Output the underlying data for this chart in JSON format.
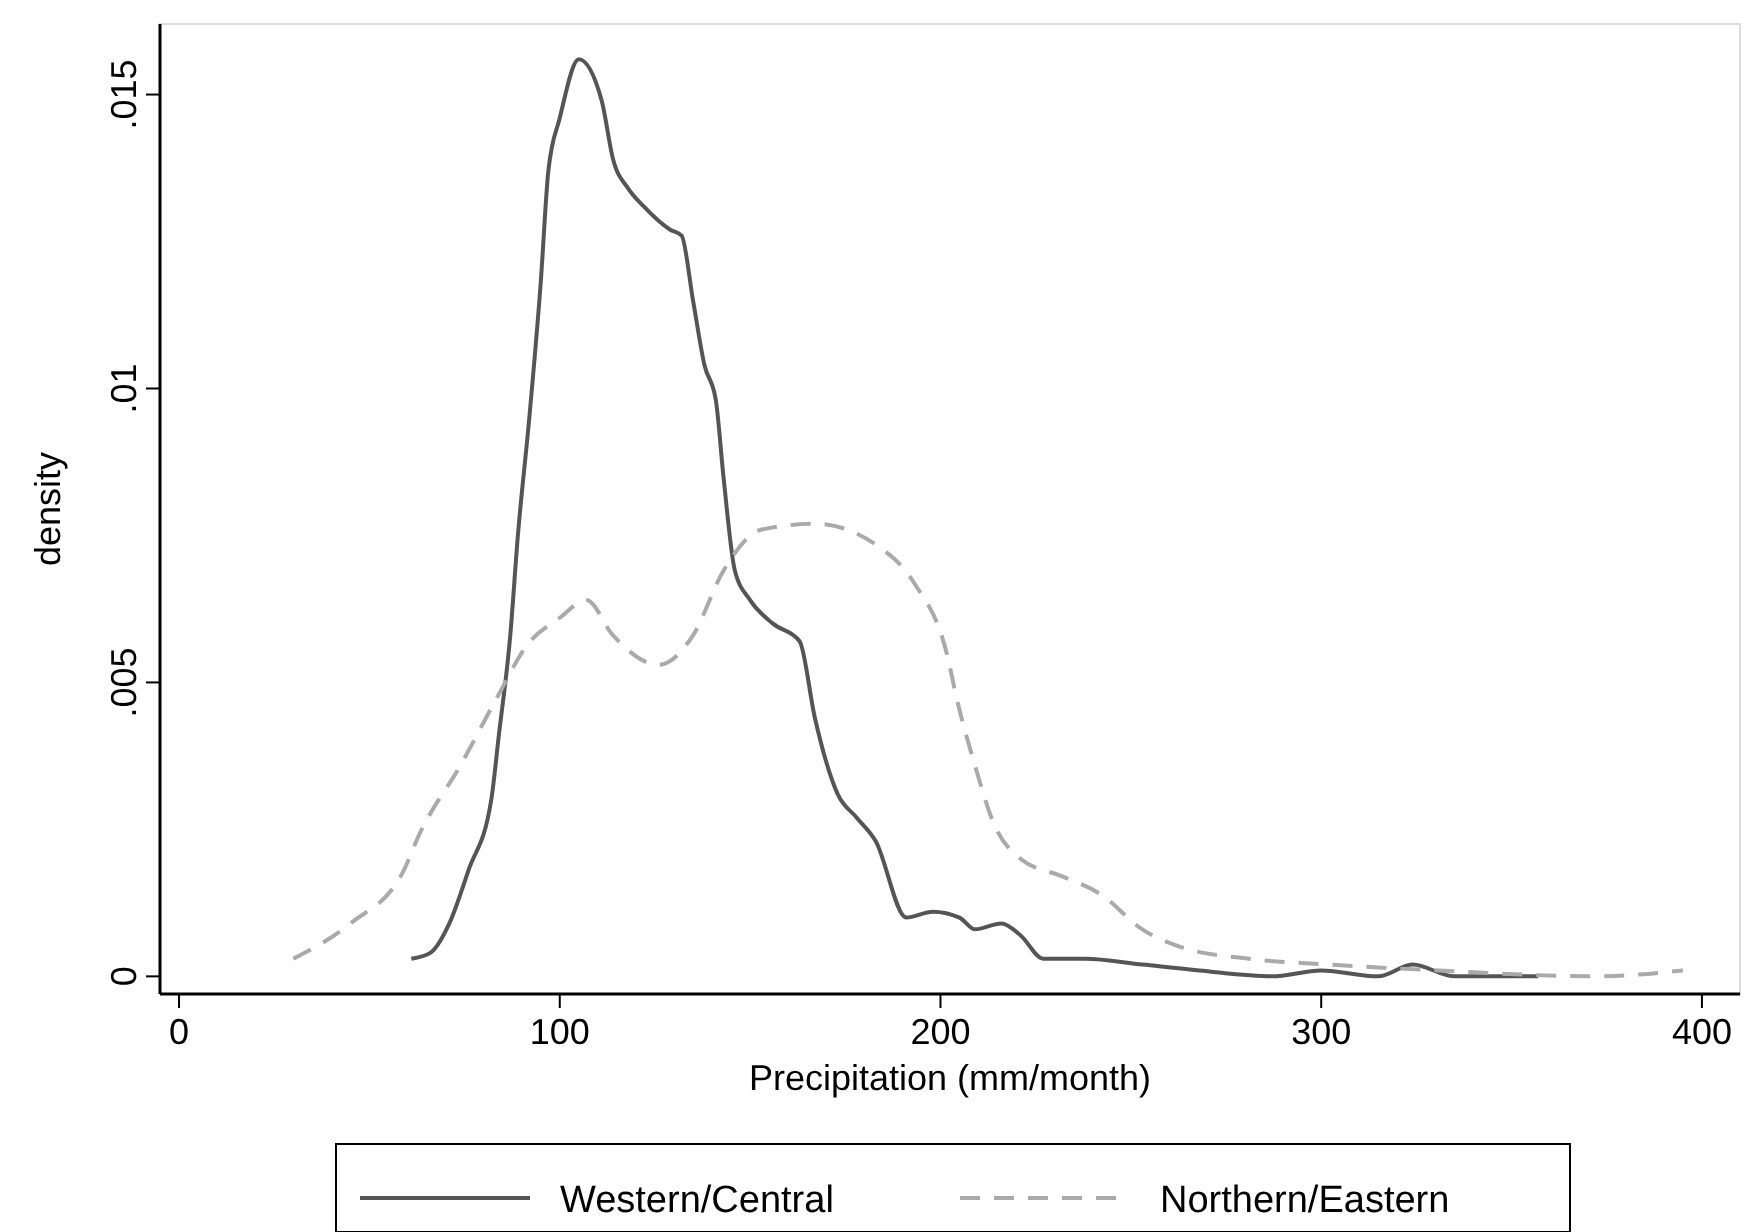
{
  "chart_data": {
    "type": "line",
    "xlabel": "Precipitation (mm/month)",
    "ylabel": "density",
    "xlim": [
      -5,
      410
    ],
    "ylim": [
      -0.0003,
      0.0162
    ],
    "xticks": [
      0,
      100,
      200,
      300,
      400
    ],
    "yticks": [
      {
        "value": 0,
        "label": "0"
      },
      {
        "value": 0.005,
        "label": ".005"
      },
      {
        "value": 0.01,
        "label": ".01"
      },
      {
        "value": 0.015,
        "label": ".015"
      }
    ],
    "grid": false,
    "legend": "bottom",
    "marker": "none",
    "series": [
      {
        "name": "Western/Central",
        "color": "#555555",
        "line_style": "solid",
        "x": [
          61,
          66,
          71,
          76,
          82,
          84,
          87,
          89,
          92,
          95,
          97,
          100,
          105,
          111,
          114,
          118,
          122,
          129,
          132,
          135,
          138,
          141,
          143,
          146,
          150,
          156,
          163,
          167,
          173,
          178,
          183,
          191,
          198,
          205,
          209,
          216,
          221,
          227,
          238,
          253,
          268,
          287,
          300,
          315,
          324,
          335,
          357
        ],
        "values": [
          0.0003,
          0.0004,
          0.0009,
          0.0018,
          0.003,
          0.0041,
          0.0058,
          0.0075,
          0.0095,
          0.0118,
          0.0137,
          0.0146,
          0.0156,
          0.0149,
          0.0139,
          0.0134,
          0.0131,
          0.0127,
          0.0126,
          0.0115,
          0.0104,
          0.0098,
          0.0085,
          0.0069,
          0.0064,
          0.006,
          0.0057,
          0.0044,
          0.0031,
          0.0027,
          0.0023,
          0.001,
          0.0011,
          0.001,
          0.0008,
          0.0009,
          0.0007,
          0.0003,
          0.0003,
          0.0002,
          0.0001,
          0,
          0.0001,
          0,
          0.0002,
          0,
          0
        ]
      },
      {
        "name": "Northern/Eastern",
        "color": "#aaaaaa",
        "line_style": "dashed",
        "x": [
          30,
          45,
          59,
          63,
          74,
          84,
          91,
          100,
          107,
          114,
          126,
          135,
          143,
          153,
          167,
          184,
          193,
          202,
          204,
          209,
          214,
          221,
          232,
          242,
          253,
          263,
          281,
          302,
          331,
          372,
          395
        ],
        "values": [
          0.0003,
          0.0009,
          0.0018,
          0.0024,
          0.0036,
          0.0048,
          0.0056,
          0.0061,
          0.0064,
          0.0058,
          0.0053,
          0.0058,
          0.0069,
          0.0076,
          0.0077,
          0.0073,
          0.0067,
          0.0054,
          0.0048,
          0.0036,
          0.0026,
          0.002,
          0.0017,
          0.0014,
          0.0008,
          0.0005,
          0.0003,
          0.0002,
          0.0001,
          0,
          0.0001
        ]
      }
    ]
  }
}
